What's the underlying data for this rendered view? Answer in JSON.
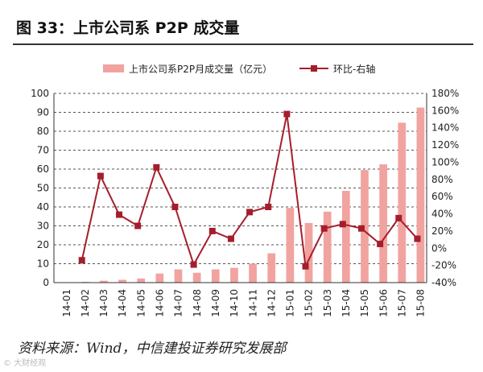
{
  "header": {
    "title": "图 33：上市公司系 P2P 成交量"
  },
  "footer": {
    "source": "资料来源：Wind，中信建投证券研究发展部",
    "watermark": "© 大财经观"
  },
  "colors": {
    "bar": "#f1a3a0",
    "line": "#a51e2c",
    "grid": "#555555"
  },
  "chart_data": {
    "type": "bar",
    "categories": [
      "14-01",
      "14-02",
      "14-03",
      "14-04",
      "14-05",
      "14-06",
      "14-07",
      "14-08",
      "14-09",
      "14-10",
      "14-11",
      "14-12",
      "15-01",
      "15-02",
      "15-03",
      "15-04",
      "15-05",
      "15-06",
      "15-07",
      "15-08"
    ],
    "series": [
      {
        "name": "上市公司系P2P月成交量（亿元）",
        "type": "bar",
        "axis": "left",
        "values": [
          0.2,
          0.4,
          1.0,
          1.5,
          2.2,
          4.8,
          7.0,
          5.2,
          7.0,
          7.8,
          10.0,
          15.5,
          39.5,
          31.5,
          37.5,
          48.5,
          59.5,
          62.5,
          84.5,
          92.5
        ]
      },
      {
        "name": "环比-右轴",
        "type": "line",
        "axis": "right",
        "values": [
          null,
          -14,
          84,
          39,
          26,
          94,
          48,
          -19,
          20,
          11,
          42,
          48,
          156,
          -21,
          23,
          28,
          23,
          5,
          35,
          11
        ]
      }
    ],
    "left_axis": {
      "ylim": [
        0,
        100
      ],
      "ticks": [
        "0",
        "10",
        "20",
        "30",
        "40",
        "50",
        "60",
        "70",
        "80",
        "90",
        "100"
      ]
    },
    "right_axis": {
      "ylim": [
        -40,
        180
      ],
      "ticks": [
        "-40%",
        "-20%",
        "0%",
        "20%",
        "40%",
        "60%",
        "80%",
        "100%",
        "120%",
        "140%",
        "160%",
        "180%"
      ]
    },
    "grid": true,
    "legend_position": "top"
  }
}
